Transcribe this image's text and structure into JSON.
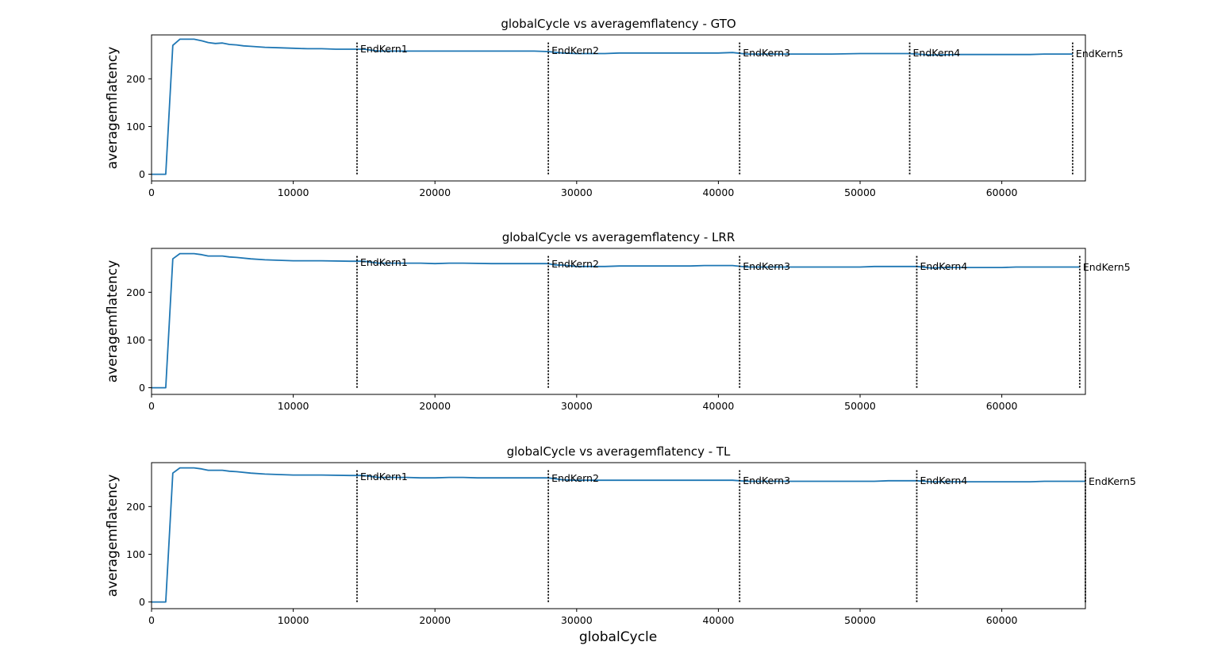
{
  "figure": {
    "xlabel": "globalCycle"
  },
  "chart_data": [
    {
      "type": "line",
      "title": "globalCycle vs averagemflatency - GTO",
      "xlabel": "",
      "ylabel": "averagemflatency",
      "xlim": [
        0,
        65900
      ],
      "ylim": [
        -14,
        292
      ],
      "xticks": [
        0,
        10000,
        20000,
        30000,
        40000,
        50000,
        60000
      ],
      "yticks": [
        0,
        100,
        200
      ],
      "grid": false,
      "series_color": "#1f77b4",
      "x": [
        0,
        900,
        1000,
        1500,
        2000,
        2500,
        3000,
        3500,
        4000,
        4500,
        5000,
        5500,
        6000,
        6500,
        7000,
        8000,
        9000,
        10000,
        11000,
        12000,
        13000,
        14500,
        15000,
        16000,
        18000,
        20000,
        22000,
        24000,
        26000,
        27000,
        28000,
        29000,
        30000,
        32000,
        33000,
        35000,
        38000,
        40000,
        41000,
        42000,
        44000,
        46000,
        48000,
        50000,
        52000,
        53500,
        55000,
        57000,
        60000,
        62000,
        63000,
        65000
      ],
      "y": [
        0,
        0,
        0,
        270,
        283,
        283,
        283,
        280,
        276,
        274,
        275,
        272,
        271,
        269,
        268,
        266,
        265,
        264,
        263,
        263,
        262,
        262,
        262,
        258,
        258,
        258,
        258,
        258,
        258,
        258,
        257,
        254,
        253,
        253,
        254,
        254,
        254,
        254,
        255,
        252,
        252,
        252,
        252,
        253,
        253,
        253,
        250,
        251,
        251,
        251,
        252,
        252
      ],
      "vlines": [
        {
          "x": 14500,
          "label": "EndKern1"
        },
        {
          "x": 28000,
          "label": "EndKern2"
        },
        {
          "x": 41500,
          "label": "EndKern3"
        },
        {
          "x": 53500,
          "label": "EndKern4"
        },
        {
          "x": 65000,
          "label": "EndKern5"
        }
      ]
    },
    {
      "type": "line",
      "title": "globalCycle vs averagemflatency - LRR",
      "xlabel": "",
      "ylabel": "averagemflatency",
      "xlim": [
        0,
        65900
      ],
      "ylim": [
        -14,
        292
      ],
      "xticks": [
        0,
        10000,
        20000,
        30000,
        40000,
        50000,
        60000
      ],
      "yticks": [
        0,
        100,
        200
      ],
      "grid": false,
      "series_color": "#1f77b4",
      "x": [
        0,
        900,
        1000,
        1500,
        2000,
        3000,
        3500,
        4000,
        5000,
        5500,
        6000,
        7000,
        8000,
        9000,
        10000,
        12000,
        14000,
        15000,
        16000,
        18000,
        19000,
        20000,
        21000,
        22000,
        24000,
        26000,
        28000,
        28500,
        29000,
        30000,
        32000,
        33000,
        35000,
        38000,
        39000,
        41000,
        42000,
        45000,
        50000,
        51000,
        54000,
        55000,
        56000,
        57000,
        60000,
        61000,
        65500
      ],
      "y": [
        0,
        0,
        0,
        270,
        281,
        281,
        279,
        276,
        276,
        274,
        273,
        270,
        268,
        267,
        266,
        266,
        265,
        265,
        261,
        261,
        261,
        260,
        261,
        261,
        260,
        260,
        260,
        257,
        257,
        254,
        254,
        255,
        255,
        255,
        256,
        256,
        253,
        253,
        253,
        254,
        254,
        251,
        252,
        252,
        252,
        253,
        253
      ],
      "vlines": [
        {
          "x": 14500,
          "label": "EndKern1"
        },
        {
          "x": 28000,
          "label": "EndKern2"
        },
        {
          "x": 41500,
          "label": "EndKern3"
        },
        {
          "x": 54000,
          "label": "EndKern4"
        },
        {
          "x": 65500,
          "label": "EndKern5"
        }
      ]
    },
    {
      "type": "line",
      "title": "globalCycle vs averagemflatency - TL",
      "xlabel": "globalCycle",
      "ylabel": "averagemflatency",
      "xlim": [
        0,
        65900
      ],
      "ylim": [
        -14,
        292
      ],
      "xticks": [
        0,
        10000,
        20000,
        30000,
        40000,
        50000,
        60000
      ],
      "yticks": [
        0,
        100,
        200
      ],
      "grid": false,
      "series_color": "#1f77b4",
      "x": [
        0,
        900,
        1000,
        1500,
        2000,
        3000,
        3500,
        4000,
        5000,
        5500,
        6000,
        7000,
        8000,
        9000,
        10000,
        12000,
        14000,
        15000,
        16000,
        18000,
        19000,
        20000,
        21000,
        22000,
        23000,
        26000,
        28000,
        28500,
        29000,
        30000,
        32000,
        36000,
        41000,
        42000,
        45000,
        51000,
        52000,
        54000,
        55000,
        58000,
        62000,
        63000,
        65900
      ],
      "y": [
        0,
        0,
        0,
        270,
        281,
        281,
        279,
        276,
        276,
        274,
        273,
        270,
        268,
        267,
        266,
        266,
        265,
        265,
        261,
        261,
        260,
        260,
        261,
        261,
        260,
        260,
        260,
        258,
        256,
        255,
        255,
        255,
        255,
        253,
        253,
        253,
        254,
        254,
        252,
        252,
        252,
        253,
        253
      ],
      "vlines": [
        {
          "x": 14500,
          "label": "EndKern1"
        },
        {
          "x": 28000,
          "label": "EndKern2"
        },
        {
          "x": 41500,
          "label": "EndKern3"
        },
        {
          "x": 54000,
          "label": "EndKern4"
        },
        {
          "x": 65900,
          "label": "EndKern5"
        }
      ]
    }
  ]
}
